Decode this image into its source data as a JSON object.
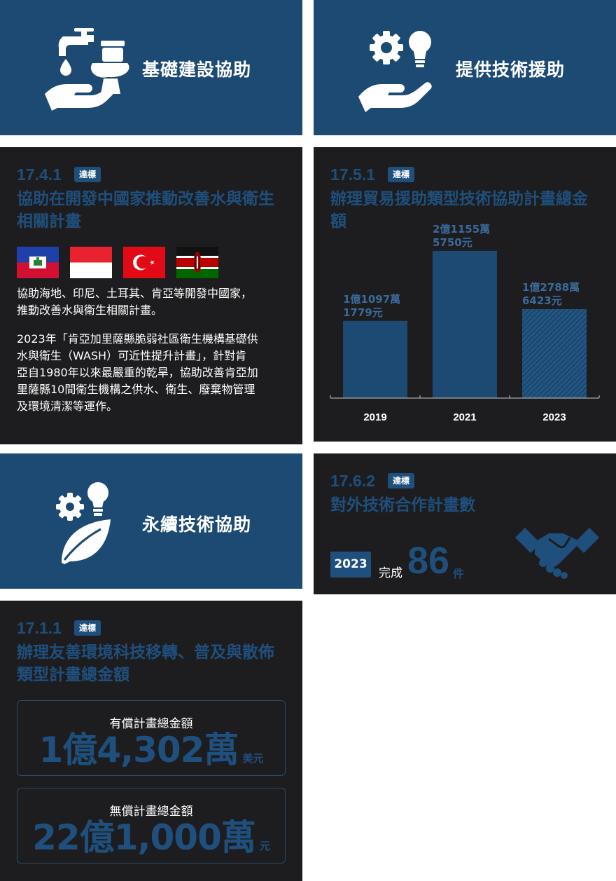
{
  "hero1": {
    "title": "基礎建設協助",
    "icon": "water-tap-toilet-hand-icon"
  },
  "hero2": {
    "title": "提供技術援助",
    "icon": "gear-bulb-hand-icon"
  },
  "hero3": {
    "title": "永續技術協助",
    "icon": "gear-bulb-leaf-icon"
  },
  "ind1741": {
    "code": "17.4.1",
    "badge": "達標",
    "title_line1": "協助在開發中國家推動改善水與衛生",
    "title_line2": "相關計畫",
    "flags": [
      "haiti-flag",
      "indonesia-flag",
      "turkey-flag",
      "kenya-flag"
    ],
    "para1_line1": "協助海地、印尼、土耳其、肯亞等開發中國家，",
    "para1_line2": "推動改善水與衛生相關計畫。",
    "para2_line1": "2023年「肯亞加里薩縣脆弱社區衛生機構基礎供",
    "para2_line2": "水與衛生（WASH）可近性提升計畫」，針對肯",
    "para2_line3": "亞自1980年以來最嚴重的乾旱，協助改善肯亞加",
    "para2_line4": "里薩縣10間衛生機構之供水、衛生、廢棄物管理",
    "para2_line5": "及環境清潔等運作。"
  },
  "ind1751": {
    "code": "17.5.1",
    "badge": "達標",
    "title_line1": "辦理貿易援助類型技術協助計畫總金",
    "title_line2": "額"
  },
  "chart_data": {
    "type": "bar",
    "categories": [
      "2019",
      "2021",
      "2023"
    ],
    "values": [
      110971779,
      211555750,
      127886423
    ],
    "data_labels": [
      [
        "1億1097萬",
        "1779元"
      ],
      [
        "2億1155萬",
        "5750元"
      ],
      [
        "1億2788萬",
        "6423元"
      ]
    ],
    "ylim": [
      0,
      220000000
    ],
    "bar_color": "#1c4a73",
    "label_color": "#3a6a99",
    "hatched_last": true
  },
  "ind1762": {
    "code": "17.6.2",
    "badge": "達標",
    "title": "對外技術合作計畫數",
    "year": "2023",
    "done_label": "完成",
    "count": "86",
    "unit": "件",
    "icon": "handshake-icon"
  },
  "ind1711": {
    "code": "17.1.1",
    "badge": "達標",
    "title_line1": "辦理友善環境科技移轉、普及與散佈",
    "title_line2": "類型計畫總金額",
    "paid_label": "有償計畫總金額",
    "paid_value": "1億4,302萬",
    "paid_unit": "美元",
    "free_label": "無償計畫總金額",
    "free_value": "22億1,000萬",
    "free_unit": "元"
  },
  "colors": {
    "navy": "#1c4a73",
    "dark": "#1d1d1f",
    "accent_text": "#1f4f7c"
  }
}
